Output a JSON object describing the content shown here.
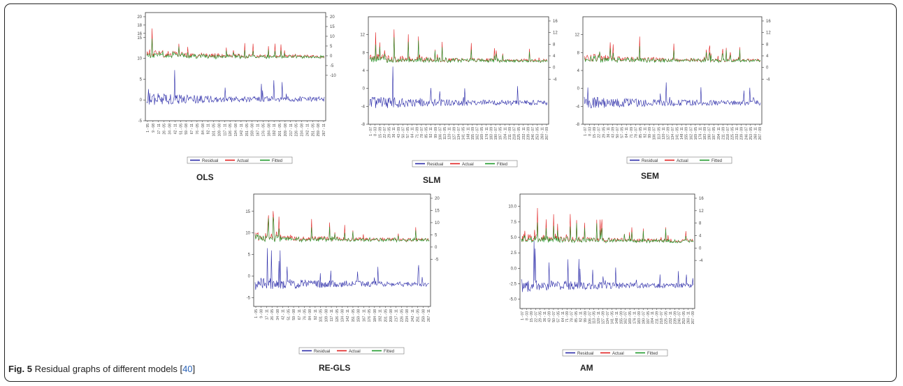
{
  "caption": {
    "label": "Fig. 5",
    "text": " Residual graphs of different models [",
    "ref": "40",
    "end": "]"
  },
  "colors": {
    "residual": "#2a2aa8",
    "actual": "#e02020",
    "fitted": "#1e9a2a",
    "baseline": "#555555"
  },
  "legend": [
    "Residual",
    "Actual",
    "Fitted"
  ],
  "chart_data": [
    {
      "type": "line",
      "title": "OLS",
      "left_ticks": [
        {
          "v": 20,
          "t": "20"
        },
        {
          "v": 18,
          "t": "18"
        },
        {
          "v": 16,
          "t": "16"
        },
        {
          "v": 15,
          "t": "15"
        },
        {
          "v": 10,
          "t": "10"
        },
        {
          "v": 5,
          "t": "5"
        },
        {
          "v": 0,
          "t": "0"
        },
        {
          "v": -5,
          "t": "-5"
        }
      ],
      "right_ticks": [
        "20",
        "15",
        "10",
        "5",
        "0",
        "-5",
        "-10"
      ],
      "x_ticks": [
        "1 - 95",
        "9 - 08",
        "17 - 11",
        "26 - 05",
        "34 - 08",
        "42 - 11",
        "51 - 05",
        "59 - 08",
        "67 - 11",
        "76 - 05",
        "84 - 08",
        "92 - 11",
        "101 - 05",
        "109 - 08",
        "117 - 11",
        "126 - 05",
        "134 - 08",
        "142 - 11",
        "151 - 05",
        "159 - 08",
        "167 - 11",
        "176 - 05",
        "184 - 08",
        "192 - 11",
        "201 - 05",
        "209 - 08",
        "217 - 11",
        "226 - 05",
        "234 - 08",
        "242 - 11",
        "251 - 05",
        "259 - 08",
        "267 - 11"
      ],
      "series": [
        {
          "name": "Residual"
        },
        {
          "name": "Actual"
        },
        {
          "name": "Fitted"
        }
      ]
    },
    {
      "type": "line",
      "title": "SLM",
      "left_ticks": [
        {
          "v": 12,
          "t": "12"
        },
        {
          "v": 8,
          "t": "8"
        },
        {
          "v": 4,
          "t": "4"
        },
        {
          "v": 0,
          "t": "0"
        },
        {
          "v": -4,
          "t": "-4"
        },
        {
          "v": -8,
          "t": "-8"
        }
      ],
      "right_ticks": [
        "16",
        "12",
        "8",
        "4",
        "0",
        "-4"
      ],
      "x_ticks": [
        "1 - 07",
        "8 - 03",
        "15 - 09",
        "22 - 07",
        "29 - 05",
        "36 - 11",
        "43 - 09",
        "50 - 07",
        "57 - 05",
        "64 - 11",
        "71 - 09",
        "78 - 07",
        "85 - 05",
        "92 - 11",
        "99 - 09",
        "106 - 07",
        "113 - 05",
        "120 - 11",
        "127 - 09",
        "134 - 07",
        "141 - 05",
        "148 - 11",
        "155 - 09",
        "162 - 07",
        "169 - 05",
        "176 - 11",
        "183 - 09",
        "190 - 07",
        "197 - 05",
        "204 - 11",
        "211 - 09",
        "218 - 07",
        "225 - 05",
        "232 - 11",
        "239 - 09",
        "246 - 07",
        "253 - 05",
        "260 - 11",
        "267 - 09"
      ],
      "series": [
        {
          "name": "Residual"
        },
        {
          "name": "Actual"
        },
        {
          "name": "Fitted"
        }
      ]
    },
    {
      "type": "line",
      "title": "SEM",
      "left_ticks": [
        {
          "v": 12,
          "t": "12"
        },
        {
          "v": 8,
          "t": "8"
        },
        {
          "v": 4,
          "t": "4"
        },
        {
          "v": 0,
          "t": "0"
        },
        {
          "v": -4,
          "t": "-4"
        },
        {
          "v": -8,
          "t": "-8"
        }
      ],
      "right_ticks": [
        "16",
        "12",
        "8",
        "4",
        "0",
        "-4"
      ],
      "x_ticks": [
        "1 - 07",
        "8 - 03",
        "15 - 09",
        "22 - 07",
        "29 - 05",
        "36 - 11",
        "43 - 09",
        "50 - 07",
        "57 - 05",
        "64 - 11",
        "71 - 09",
        "78 - 07",
        "85 - 05",
        "92 - 11",
        "99 - 09",
        "106 - 07",
        "113 - 05",
        "120 - 11",
        "127 - 09",
        "134 - 07",
        "141 - 05",
        "148 - 11",
        "155 - 09",
        "162 - 07",
        "169 - 05",
        "176 - 11",
        "183 - 09",
        "190 - 07",
        "197 - 05",
        "204 - 11",
        "211 - 09",
        "218 - 07",
        "225 - 05",
        "232 - 11",
        "239 - 09",
        "246 - 07",
        "253 - 05",
        "260 - 11",
        "267 - 09"
      ],
      "series": [
        {
          "name": "Residual"
        },
        {
          "name": "Actual"
        },
        {
          "name": "Fitted"
        }
      ]
    },
    {
      "type": "line",
      "title": "RE-GLS",
      "left_ticks": [
        {
          "v": 15,
          "t": "15"
        },
        {
          "v": 10,
          "t": "10"
        },
        {
          "v": 5,
          "t": "5"
        },
        {
          "v": 0,
          "t": "0"
        },
        {
          "v": -5,
          "t": "-5"
        }
      ],
      "right_ticks": [
        "20",
        "15",
        "10",
        "5",
        "0",
        "-5"
      ],
      "x_ticks": [
        "1 - 05",
        "9 - 08",
        "17 - 11",
        "26 - 05",
        "34 - 08",
        "42 - 11",
        "51 - 05",
        "59 - 08",
        "67 - 11",
        "76 - 05",
        "84 - 08",
        "92 - 11",
        "101 - 05",
        "109 - 08",
        "117 - 11",
        "126 - 05",
        "134 - 08",
        "142 - 11",
        "151 - 05",
        "159 - 08",
        "167 - 11",
        "176 - 05",
        "184 - 08",
        "192 - 11",
        "201 - 05",
        "209 - 08",
        "217 - 11",
        "226 - 05",
        "234 - 08",
        "242 - 11",
        "251 - 05",
        "259 - 08",
        "267 - 11"
      ],
      "series": [
        {
          "name": "Residual"
        },
        {
          "name": "Actual"
        },
        {
          "name": "Fitted"
        }
      ]
    },
    {
      "type": "line",
      "title": "AM",
      "left_ticks": [
        {
          "v": 10,
          "t": "10.0"
        },
        {
          "v": 7.5,
          "t": "7.5"
        },
        {
          "v": 5,
          "t": "5.0"
        },
        {
          "v": 2.5,
          "t": "2.5"
        },
        {
          "v": 0,
          "t": "0.0"
        },
        {
          "v": -2.5,
          "t": "-2.5"
        },
        {
          "v": -5,
          "t": "-5.0"
        }
      ],
      "right_ticks": [
        "16",
        "12",
        "8",
        "4",
        "0",
        "-4"
      ],
      "x_ticks": [
        "1 - 07",
        "8 - 03",
        "15 - 09",
        "22 - 07",
        "29 - 05",
        "36 - 11",
        "43 - 09",
        "50 - 07",
        "57 - 05",
        "64 - 11",
        "71 - 09",
        "78 - 07",
        "85 - 05",
        "92 - 11",
        "99 - 09",
        "106 - 07",
        "113 - 05",
        "120 - 11",
        "127 - 09",
        "134 - 07",
        "141 - 05",
        "148 - 11",
        "155 - 09",
        "162 - 07",
        "169 - 05",
        "176 - 11",
        "183 - 09",
        "190 - 07",
        "197 - 05",
        "204 - 11",
        "211 - 09",
        "218 - 07",
        "225 - 05",
        "232 - 11",
        "239 - 09",
        "246 - 07",
        "253 - 05",
        "260 - 11",
        "267 - 09"
      ],
      "series": [
        {
          "name": "Residual"
        },
        {
          "name": "Actual"
        },
        {
          "name": "Fitted"
        }
      ]
    }
  ]
}
